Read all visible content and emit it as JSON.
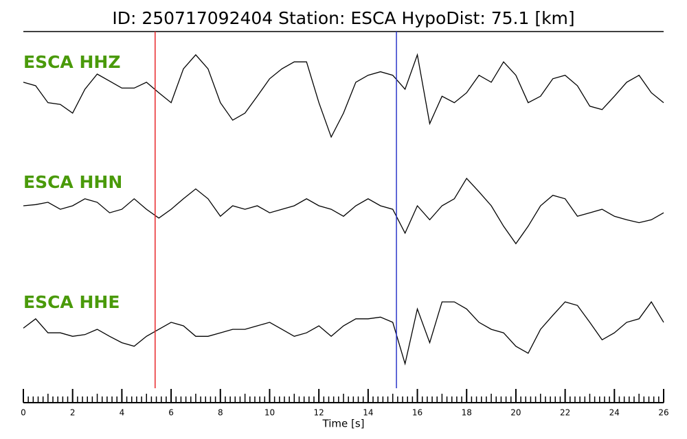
{
  "chart_data": {
    "type": "waveform",
    "title": "ID: 250717092404   Station: ESCA   HypoDist:    75.1 [km]",
    "x_label": "Time [s]",
    "xlim": [
      0,
      26
    ],
    "xticks": [
      0,
      2,
      4,
      6,
      8,
      10,
      12,
      14,
      16,
      18,
      20,
      22,
      24,
      26
    ],
    "xminor_step": 0.2,
    "ylim": [
      -1,
      1
    ],
    "label_color": "#4a9a0a",
    "vlines": [
      {
        "x": 5.35,
        "color": "#e8262a"
      },
      {
        "x": 15.15,
        "color": "#2a35c8"
      }
    ],
    "x": [
      0,
      0.5,
      1,
      1.5,
      2,
      2.5,
      3,
      3.5,
      4,
      4.5,
      5,
      5.5,
      6,
      6.5,
      7,
      7.5,
      8,
      8.5,
      9,
      9.5,
      10,
      10.5,
      11,
      11.5,
      12,
      12.5,
      13,
      13.5,
      14,
      14.5,
      15,
      15.5,
      16,
      16.5,
      17,
      17.5,
      18,
      18.5,
      19,
      19.5,
      20,
      20.5,
      21,
      21.5,
      22,
      22.5,
      23,
      23.5,
      24,
      24.5,
      25,
      25.5,
      26
    ],
    "series": [
      {
        "name": "ESCA HHZ",
        "color": "#000000",
        "values": [
          0.06,
          0,
          -0.29,
          -0.32,
          -0.47,
          -0.06,
          0.2,
          0.08,
          -0.04,
          -0.04,
          0.06,
          -0.12,
          -0.29,
          0.29,
          0.53,
          0.29,
          -0.29,
          -0.59,
          -0.47,
          -0.18,
          0.12,
          0.29,
          0.41,
          0.41,
          -0.29,
          -0.88,
          -0.47,
          0.06,
          0.18,
          0.24,
          0.18,
          -0.06,
          0.53,
          -0.65,
          -0.18,
          -0.29,
          -0.12,
          0.18,
          0.06,
          0.41,
          0.18,
          -0.29,
          -0.18,
          0.12,
          0.18,
          0,
          -0.35,
          -0.41,
          -0.18,
          0.06,
          0.18,
          -0.12,
          -0.29
        ]
      },
      {
        "name": "ESCA HHN",
        "color": "#000000",
        "values": [
          0,
          0.02,
          0.06,
          -0.06,
          0,
          0.12,
          0.06,
          -0.12,
          -0.06,
          0.12,
          -0.06,
          -0.21,
          -0.06,
          0.12,
          0.29,
          0.12,
          -0.18,
          0,
          -0.06,
          0,
          -0.12,
          -0.06,
          0,
          0.12,
          0,
          -0.06,
          -0.18,
          0,
          0.12,
          0,
          -0.06,
          -0.47,
          0,
          -0.24,
          0,
          0.12,
          0.47,
          0.24,
          0,
          -0.35,
          -0.65,
          -0.35,
          0,
          0.18,
          0.12,
          -0.18,
          -0.12,
          -0.06,
          -0.18,
          -0.24,
          -0.29,
          -0.24,
          -0.12
        ]
      },
      {
        "name": "ESCA HHE",
        "color": "#000000",
        "values": [
          -0.04,
          0.12,
          -0.12,
          -0.12,
          -0.18,
          -0.15,
          -0.06,
          -0.18,
          -0.29,
          -0.35,
          -0.18,
          -0.06,
          0.06,
          0,
          -0.18,
          -0.18,
          -0.12,
          -0.06,
          -0.06,
          0,
          0.06,
          -0.06,
          -0.18,
          -0.12,
          0,
          -0.18,
          0,
          0.12,
          0.12,
          0.15,
          0.06,
          -0.65,
          0.29,
          -0.29,
          0.41,
          0.41,
          0.29,
          0.06,
          -0.06,
          -0.12,
          -0.35,
          -0.47,
          -0.06,
          0.18,
          0.41,
          0.35,
          0.06,
          -0.24,
          -0.12,
          0.06,
          0.12,
          0.41,
          0.06
        ]
      }
    ]
  }
}
